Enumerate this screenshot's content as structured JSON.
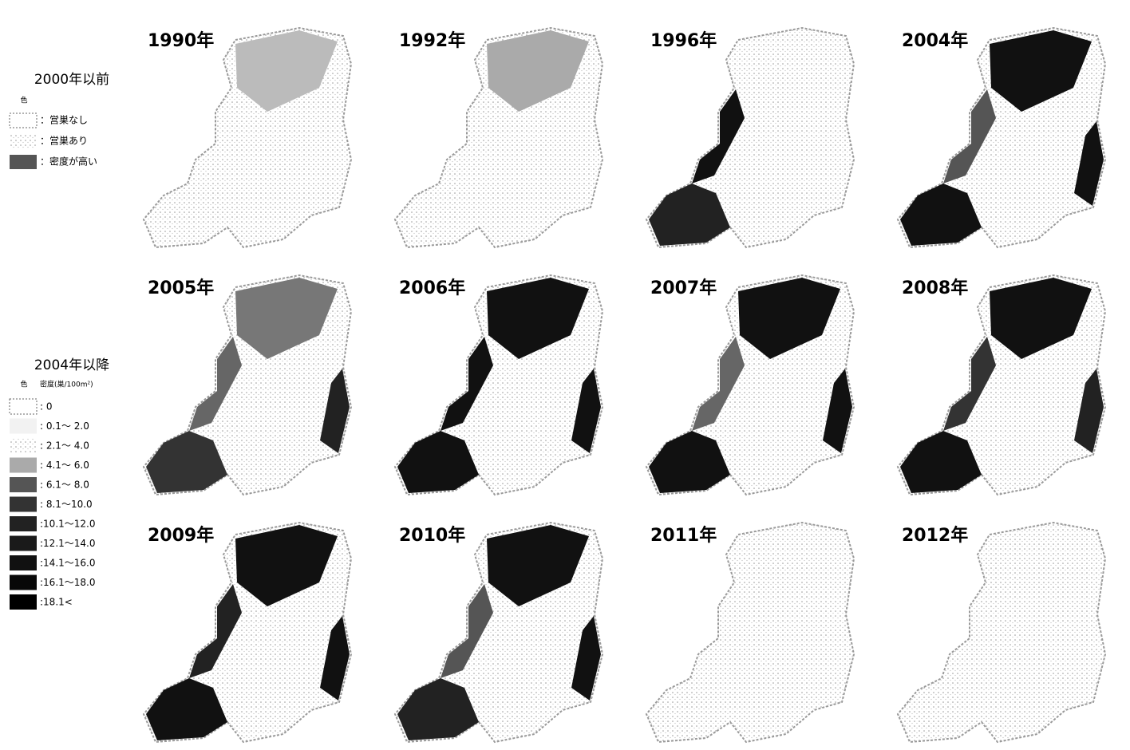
{
  "legend_before": {
    "title": "2000年以前",
    "color_label": "色",
    "items": [
      "：営巣なし",
      "：営巣あり",
      "：密度が高い"
    ]
  },
  "legend_after": {
    "title": "2004年以降",
    "color_label": "色",
    "unit_label": "密度(巣/100m²)",
    "items": [
      ": 0",
      ": 0.1～ 2.0",
      ": 2.1～ 4.0",
      ": 4.1～ 6.0",
      ": 6.1～ 8.0",
      ": 8.1～10.0",
      ":10.1～12.0",
      ":12.1～14.0",
      ":14.1～16.0",
      ":16.1～18.0",
      ":18.1<"
    ]
  },
  "panels": [
    "1990年",
    "1992年",
    "1996年",
    "2004年",
    "2005年",
    "2006年",
    "2007年",
    "2008年",
    "2009年",
    "2010年",
    "2011年",
    "2012年"
  ]
}
